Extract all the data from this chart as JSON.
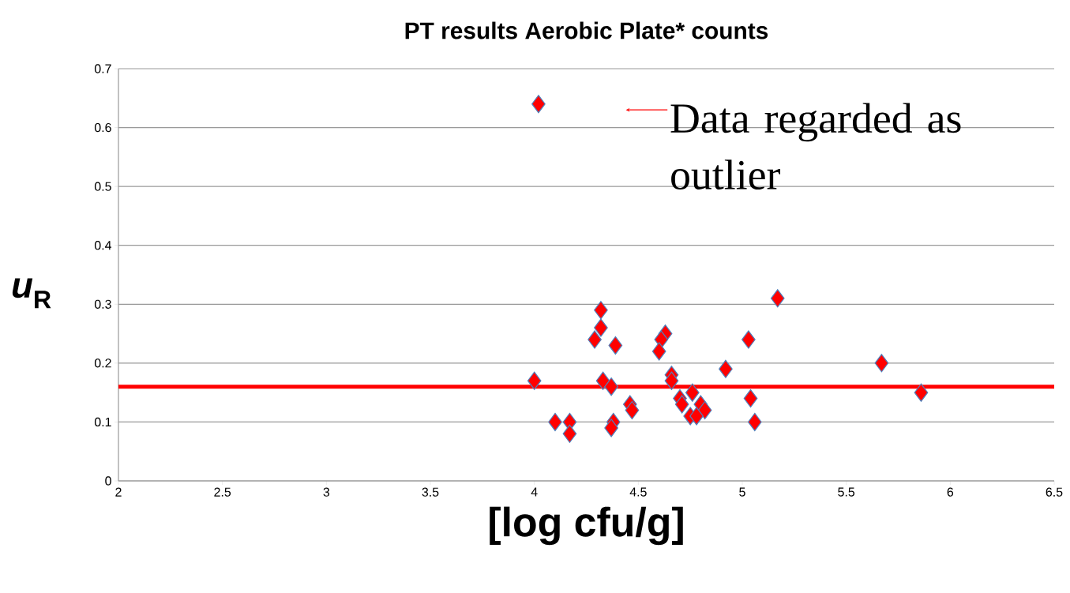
{
  "chart_data": {
    "type": "scatter",
    "title": "PT results Aerobic Plate* counts",
    "xlabel": "[log cfu/g]",
    "ylabel": "*u*$_{R}$",
    "x": [
      4.02,
      4.0,
      4.32,
      4.32,
      4.29,
      4.39,
      4.33,
      4.37,
      4.1,
      4.17,
      4.17,
      4.38,
      4.37,
      4.46,
      4.47,
      4.63,
      4.61,
      4.6,
      4.66,
      4.66,
      4.7,
      4.71,
      4.76,
      4.8,
      4.82,
      4.75,
      4.78,
      4.92,
      5.03,
      5.04,
      5.06,
      5.17,
      5.67,
      5.86
    ],
    "series": [
      {
        "color": "#ff0000",
        "values": [
          0.64,
          0.17,
          0.29,
          0.26,
          0.24,
          0.23,
          0.17,
          0.16,
          0.1,
          0.1,
          0.08,
          0.1,
          0.09,
          0.13,
          0.12,
          0.25,
          0.24,
          0.22,
          0.18,
          0.17,
          0.14,
          0.13,
          0.15,
          0.13,
          0.12,
          0.11,
          0.11,
          0.19,
          0.24,
          0.14,
          0.1,
          0.31,
          0.2,
          0.15
        ]
      }
    ],
    "xlim": [
      2,
      6.5
    ],
    "xticks": [
      2,
      2.5,
      3,
      3.5,
      4,
      4.5,
      5,
      5.5,
      6,
      6.5
    ],
    "ylim": [
      0,
      0.7
    ],
    "yticks": [
      0,
      0.1,
      0.2,
      0.3,
      0.4,
      0.5,
      0.6,
      0.7
    ],
    "grid": "y",
    "marker": "diamond",
    "ref_lines": [
      {
        "axis": "y",
        "value": 0.16,
        "color": "#ff0000"
      }
    ],
    "annotations": [
      "Data regarded as outlier"
    ]
  }
}
